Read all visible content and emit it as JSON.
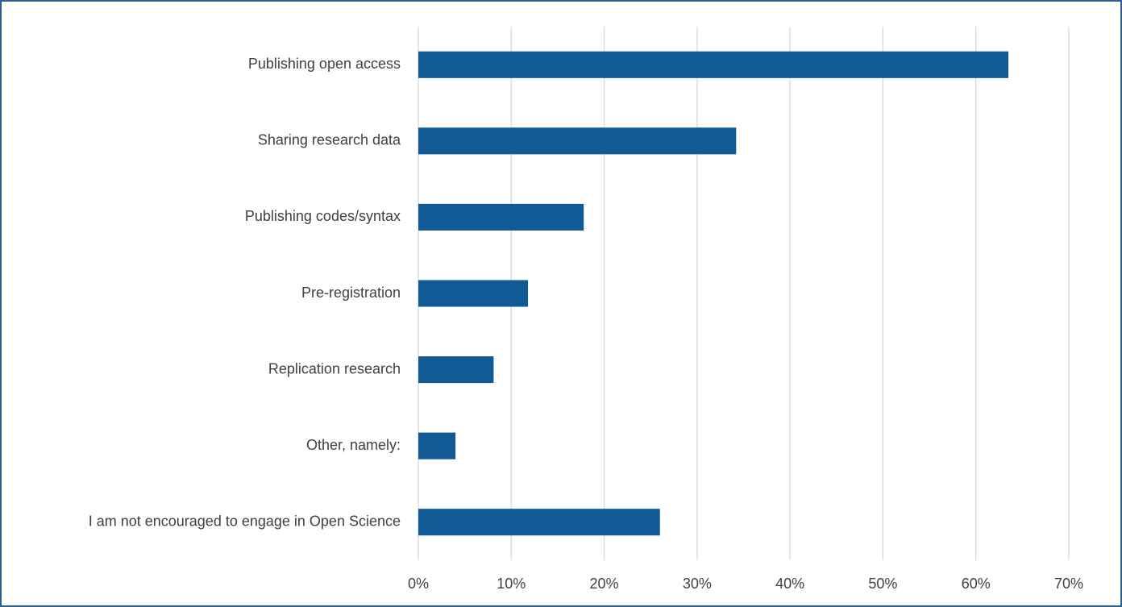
{
  "chart_data": {
    "type": "bar",
    "orientation": "horizontal",
    "categories": [
      "Publishing open access",
      "Sharing research data",
      "Publishing codes/syntax",
      "Pre-registration",
      "Replication research",
      "Other, namely:",
      "I am not encouraged to engage in Open Science"
    ],
    "values": [
      63.5,
      34.2,
      17.8,
      11.8,
      8.1,
      4.0,
      26.0
    ],
    "color": "#115a96",
    "xlim": [
      0,
      70
    ],
    "xticks": [
      {
        "value": 0,
        "label": "0%"
      },
      {
        "value": 10,
        "label": "10%"
      },
      {
        "value": 20,
        "label": "20%"
      },
      {
        "value": 30,
        "label": "30%"
      },
      {
        "value": 40,
        "label": "40%"
      },
      {
        "value": 50,
        "label": "50%"
      },
      {
        "value": 60,
        "label": "60%"
      },
      {
        "value": 70,
        "label": "70%"
      }
    ],
    "grid": true
  }
}
